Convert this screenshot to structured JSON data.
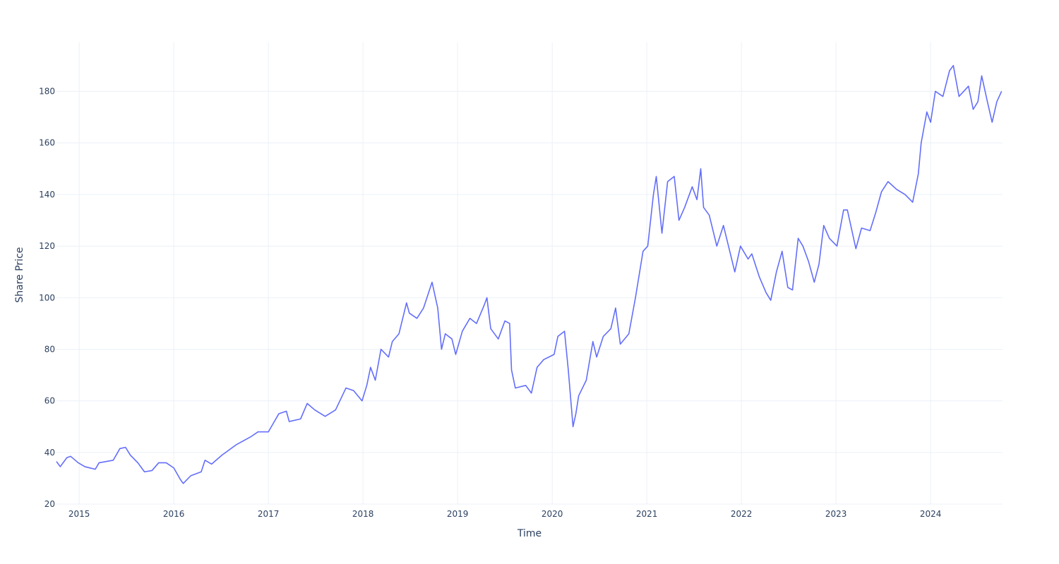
{
  "chart_data": {
    "type": "line",
    "x_label": "Time",
    "y_label": "Share Price",
    "color": "#636efa",
    "grid": true,
    "x": [
      2014.76,
      2014.8,
      2014.87,
      2014.91,
      2014.99,
      2015.06,
      2015.17,
      2015.21,
      2015.36,
      2015.43,
      2015.49,
      2015.54,
      2015.62,
      2015.69,
      2015.77,
      2015.84,
      2015.92,
      2016.0,
      2016.07,
      2016.1,
      2016.18,
      2016.29,
      2016.33,
      2016.4,
      2016.51,
      2016.66,
      2016.81,
      2016.89,
      2017.0,
      2017.11,
      2017.19,
      2017.22,
      2017.34,
      2017.41,
      2017.49,
      2017.6,
      2017.71,
      2017.82,
      2017.9,
      2017.99,
      2018.04,
      2018.08,
      2018.13,
      2018.19,
      2018.27,
      2018.31,
      2018.38,
      2018.46,
      2018.49,
      2018.57,
      2018.64,
      2018.73,
      2018.79,
      2018.83,
      2018.87,
      2018.94,
      2018.98,
      2019.05,
      2019.13,
      2019.2,
      2019.28,
      2019.31,
      2019.35,
      2019.43,
      2019.5,
      2019.55,
      2019.57,
      2019.61,
      2019.72,
      2019.78,
      2019.84,
      2019.91,
      2020.02,
      2020.06,
      2020.13,
      2020.17,
      2020.22,
      2020.25,
      2020.28,
      2020.36,
      2020.43,
      2020.47,
      2020.54,
      2020.62,
      2020.67,
      2020.72,
      2020.81,
      2020.88,
      2020.96,
      2021.01,
      2021.07,
      2021.1,
      2021.16,
      2021.22,
      2021.29,
      2021.34,
      2021.4,
      2021.48,
      2021.53,
      2021.57,
      2021.6,
      2021.66,
      2021.74,
      2021.81,
      2021.87,
      2021.93,
      2021.99,
      2022.07,
      2022.11,
      2022.19,
      2022.26,
      2022.31,
      2022.37,
      2022.43,
      2022.49,
      2022.54,
      2022.6,
      2022.65,
      2022.71,
      2022.77,
      2022.82,
      2022.87,
      2022.93,
      2023.01,
      2023.08,
      2023.12,
      2023.21,
      2023.27,
      2023.36,
      2023.42,
      2023.48,
      2023.55,
      2023.64,
      2023.73,
      2023.81,
      2023.87,
      2023.9,
      2023.96,
      2024.0,
      2024.05,
      2024.13,
      2024.2,
      2024.24,
      2024.3,
      2024.35,
      2024.4,
      2024.45,
      2024.5,
      2024.54,
      2024.6,
      2024.65,
      2024.7,
      2024.75
    ],
    "values": [
      36.5,
      34.5,
      38,
      38.5,
      36,
      34.5,
      33.5,
      36,
      37,
      41.5,
      42,
      39,
      36,
      32.5,
      33,
      36,
      36,
      34,
      29.5,
      28,
      31,
      32.5,
      37,
      35.5,
      39,
      43,
      46,
      48,
      48,
      55,
      56,
      52,
      53,
      59,
      56.5,
      54,
      56.5,
      65,
      64,
      60,
      66,
      73,
      68,
      80,
      77,
      83,
      86,
      98,
      94,
      92,
      96,
      106,
      96,
      80,
      86,
      84,
      78,
      87,
      92,
      90,
      97,
      100,
      88,
      84,
      91,
      90,
      72,
      65,
      66,
      63,
      73,
      76,
      78,
      85,
      87,
      72,
      50,
      55,
      62,
      68,
      83,
      77,
      85,
      88,
      96,
      82,
      86,
      100,
      118,
      120,
      140,
      147,
      125,
      145,
      147,
      130,
      135,
      143,
      138,
      150,
      135,
      132,
      120,
      128,
      119,
      110,
      120,
      115,
      117,
      108,
      102,
      99,
      110,
      118,
      104,
      103,
      123,
      120,
      114,
      106,
      113,
      128,
      123,
      120,
      134,
      134,
      119,
      127,
      126,
      133,
      141,
      145,
      142,
      140,
      137,
      148,
      160,
      172,
      168,
      180,
      178,
      188,
      190,
      178,
      180,
      182,
      173,
      176,
      186,
      176,
      168,
      176,
      180
    ],
    "xlim": [
      2014.76,
      2024.76
    ],
    "xticks": [
      2015,
      2016,
      2017,
      2018,
      2019,
      2020,
      2021,
      2022,
      2023,
      2024
    ],
    "ylim": [
      20,
      199
    ],
    "yticks": [
      20,
      40,
      60,
      80,
      100,
      120,
      140,
      160,
      180
    ]
  }
}
